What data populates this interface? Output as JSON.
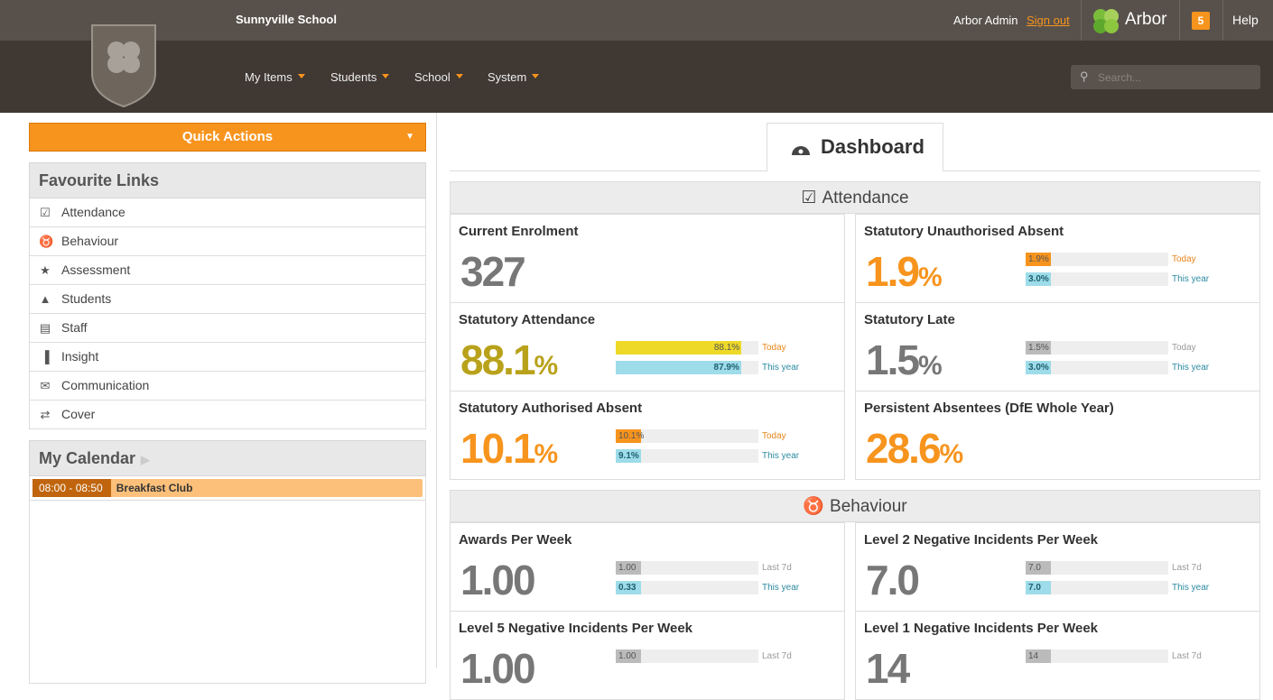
{
  "header": {
    "school": "Sunnyville School",
    "user": "Arbor Admin",
    "sign_out": "Sign out",
    "brand": "Arbor",
    "notifications": "5",
    "help": "Help",
    "nav": [
      "My Items",
      "Students",
      "School",
      "System"
    ],
    "search_placeholder": "Search..."
  },
  "sidebar": {
    "quick_actions": "Quick Actions",
    "favourites_title": "Favourite Links",
    "favourites": [
      "Attendance",
      "Behaviour",
      "Assessment",
      "Students",
      "Staff",
      "Insight",
      "Communication",
      "Cover"
    ],
    "calendar_title": "My Calendar",
    "events": [
      {
        "time": "08:00 - 08:50",
        "title": "Breakfast Club"
      }
    ]
  },
  "dashboard": {
    "tab": "Dashboard",
    "sections": [
      {
        "title": "Attendance",
        "cards": [
          {
            "title": "Current Enrolment",
            "value": "327",
            "color": "#777777"
          },
          {
            "title": "Statutory Unauthorised Absent",
            "value": "1.9",
            "unit": "%",
            "color": "#f7941d",
            "bars": [
              {
                "label": "1.9%",
                "period": "Today",
                "color": "#f7941d"
              },
              {
                "label": "3.0%",
                "period": "This year",
                "color": "#9edce9"
              }
            ]
          },
          {
            "title": "Statutory Attendance",
            "value": "88.1",
            "unit": "%",
            "color": "#b9a21b",
            "bars": [
              {
                "label": "88.1%",
                "period": "Today",
                "color": "#eed928"
              },
              {
                "label": "87.9%",
                "period": "This year",
                "color": "#9edce9"
              }
            ]
          },
          {
            "title": "Statutory Late",
            "value": "1.5",
            "unit": "%",
            "color": "#777777",
            "bars": [
              {
                "label": "1.5%",
                "period": "Today",
                "color": "#bbbbbb"
              },
              {
                "label": "3.0%",
                "period": "This year",
                "color": "#9edce9"
              }
            ]
          },
          {
            "title": "Statutory Authorised Absent",
            "value": "10.1",
            "unit": "%",
            "color": "#f7941d",
            "bars": [
              {
                "label": "10.1%",
                "period": "Today",
                "color": "#f7941d"
              },
              {
                "label": "9.1%",
                "period": "This year",
                "color": "#9edce9"
              }
            ]
          },
          {
            "title": "Persistent Absentees (DfE Whole Year)",
            "value": "28.6",
            "unit": "%",
            "color": "#f7941d"
          }
        ]
      },
      {
        "title": "Behaviour",
        "cards": [
          {
            "title": "Awards Per Week",
            "value": "1.00",
            "color": "#777777",
            "bars": [
              {
                "label": "1.00",
                "period": "Last 7d",
                "color": "#bbbbbb"
              },
              {
                "label": "0.33",
                "period": "This year",
                "color": "#9edce9"
              }
            ]
          },
          {
            "title": "Level 2 Negative Incidents Per Week",
            "value": "7.0",
            "color": "#777777",
            "bars": [
              {
                "label": "7.0",
                "period": "Last 7d",
                "color": "#bbbbbb"
              },
              {
                "label": "7.0",
                "period": "This year",
                "color": "#9edce9"
              }
            ]
          },
          {
            "title": "Level 5 Negative Incidents Per Week",
            "value": "1.00",
            "color": "#777777",
            "bars": [
              {
                "label": "1.00",
                "period": "Last 7d",
                "color": "#bbbbbb"
              }
            ]
          },
          {
            "title": "Level 1 Negative Incidents Per Week",
            "value": "14",
            "color": "#777777",
            "bars": [
              {
                "label": "14",
                "period": "Last 7d",
                "color": "#bbbbbb"
              }
            ]
          }
        ]
      }
    ]
  }
}
